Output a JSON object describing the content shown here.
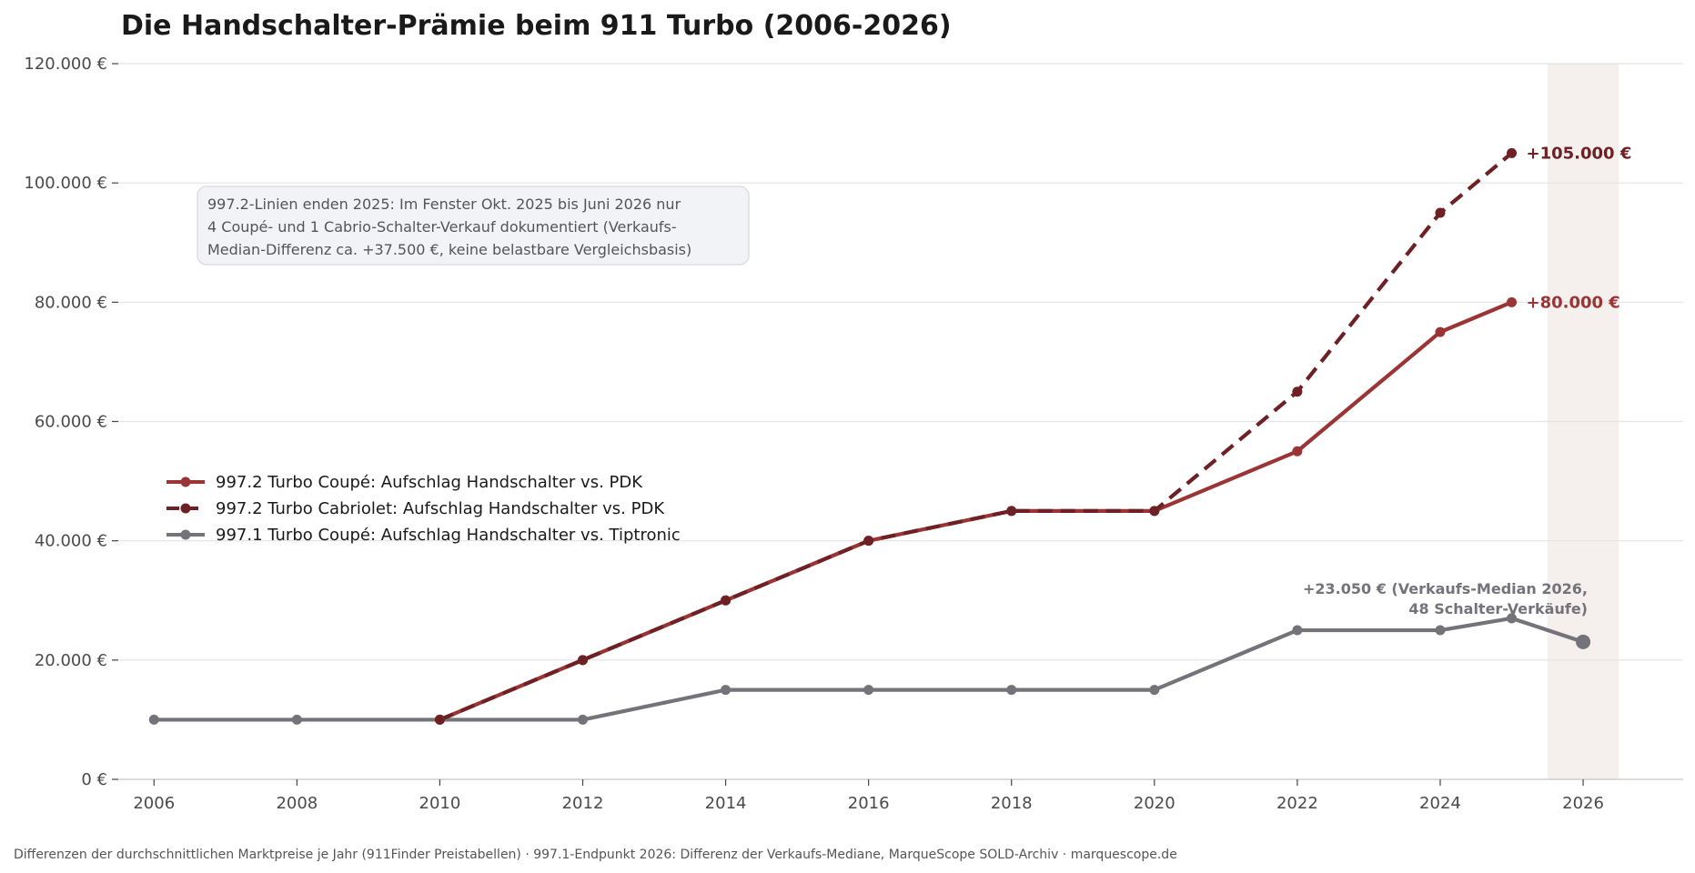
{
  "chart_data": {
    "type": "line",
    "title": "Die Handschalter-Prämie beim 911 Turbo (2006-2026)",
    "xlim": [
      2005.5,
      2027.4
    ],
    "ylim": [
      0,
      120000
    ],
    "x_ticks": [
      2006,
      2008,
      2010,
      2012,
      2014,
      2016,
      2018,
      2020,
      2022,
      2024,
      2026
    ],
    "x_tick_labels": [
      "2006",
      "2008",
      "2010",
      "2012",
      "2014",
      "2016",
      "2018",
      "2020",
      "2022",
      "2024",
      "2026"
    ],
    "y_ticks": [
      0,
      20000,
      40000,
      60000,
      80000,
      100000,
      120000
    ],
    "y_tick_labels": [
      "0 €",
      "20.000 €",
      "40.000 €",
      "60.000 €",
      "80.000 €",
      "100.000 €",
      "120.000 €"
    ],
    "grid": "horizontal",
    "legend_position": "center-left",
    "highlight_band": [
      2025.5,
      2026.5
    ],
    "series": [
      {
        "name": "997.2 Turbo Coupé: Aufschlag Handschalter vs. PDK",
        "color": "#9b3535",
        "style": "solid",
        "x": [
          2010,
          2012,
          2014,
          2016,
          2018,
          2020,
          2022,
          2024,
          2025
        ],
        "y": [
          10000,
          20000,
          30000,
          40000,
          45000,
          45000,
          55000,
          75000,
          80000
        ],
        "end_label": "+80.000 €"
      },
      {
        "name": "997.2 Turbo Cabriolet: Aufschlag Handschalter vs. PDK",
        "color": "#6e2125",
        "style": "dashed",
        "x": [
          2010,
          2012,
          2014,
          2016,
          2018,
          2020,
          2022,
          2024,
          2025
        ],
        "y": [
          10000,
          20000,
          30000,
          40000,
          45000,
          45000,
          65000,
          95000,
          105000
        ],
        "end_label": "+105.000 €"
      },
      {
        "name": "997.1 Turbo Coupé: Aufschlag Handschalter vs. Tiptronic",
        "color": "#74737a",
        "style": "solid",
        "x": [
          2006,
          2008,
          2010,
          2012,
          2014,
          2016,
          2018,
          2020,
          2022,
          2024,
          2025
        ],
        "y": [
          10000,
          10000,
          10000,
          10000,
          15000,
          15000,
          15000,
          15000,
          25000,
          25000,
          27000
        ],
        "endpoint": {
          "x": 2026,
          "y": 23050
        }
      }
    ],
    "annotations": {
      "note_lines": [
        "997.2-Linien enden 2025: Im Fenster Okt. 2025 bis Juni 2026 nur",
        "4 Coupé- und 1 Cabrio-Schalter-Verkauf dokumentiert (Verkaufs-",
        "Median-Differenz ca. +37.500 €, keine belastbare Vergleichsbasis)"
      ],
      "endpoint_lines": [
        "+23.050 € (Verkaufs-Median 2026,",
        "48 Schalter-Verkäufe)"
      ]
    },
    "source": "Differenzen der durchschnittlichen Marktpreise je Jahr (911Finder Preistabellen) · 997.1-Endpunkt 2026: Differenz der Verkaufs-Mediane, MarqueScope SOLD-Archiv · marquescope.de"
  }
}
